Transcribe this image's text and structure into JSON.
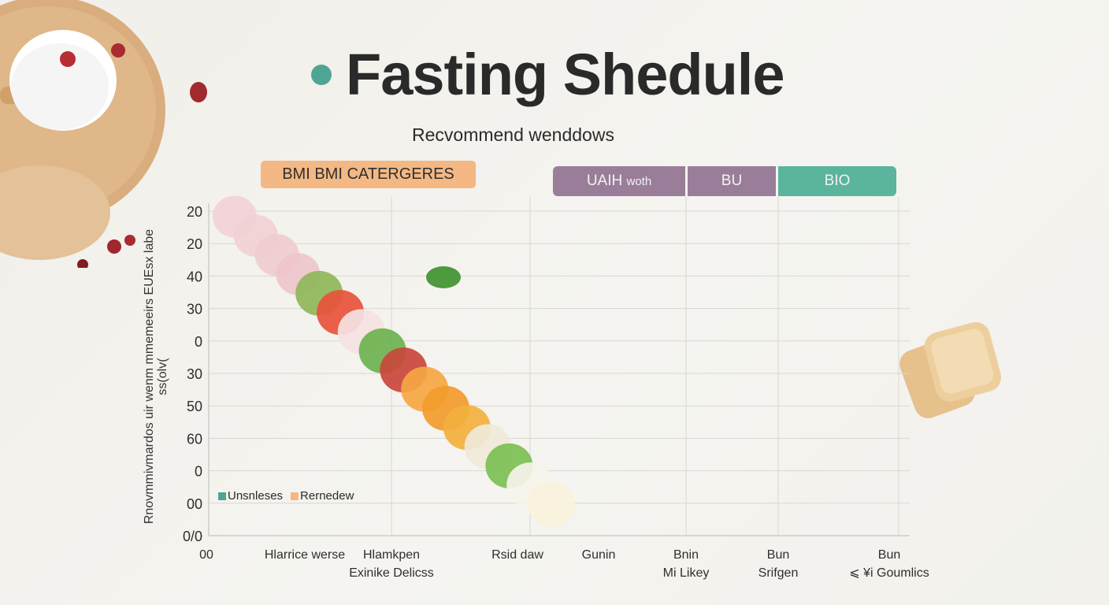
{
  "header": {
    "title": "Fasting Shedule",
    "subtitle": "Recvommend wenddows"
  },
  "category_pill": "BMI BMI CATERGERES",
  "segments": [
    {
      "label": "UAIH",
      "sub": "woth",
      "color": "#9a7e99"
    },
    {
      "label": "BU",
      "sub": "",
      "color": "#9a7e99"
    },
    {
      "label": "BIO",
      "sub": "",
      "color": "#5ab59c"
    }
  ],
  "colors": {
    "accent_teal": "#4fa593",
    "accent_orange": "#f3b884",
    "purple": "#9a7e99",
    "green": "#5ab59c"
  },
  "chart_data": {
    "type": "line",
    "title": "Fasting Shedule",
    "subtitle": "Recvommend wenddows",
    "ylabel": "Rnovmmivmardos uir wenm mmemeeirs EUEsx labe ss(olv(",
    "y_tick_labels": [
      "20",
      "20",
      "40",
      "30",
      "0",
      "30",
      "50",
      "60",
      "0",
      "00",
      "0/0"
    ],
    "x_tick_labels": [
      {
        "line1": "00",
        "line2": ""
      },
      {
        "line1": "Hlarrice werse",
        "line2": ""
      },
      {
        "line1": "Hlamkpen",
        "line2": "Exinike Delicss"
      },
      {
        "line1": "Rsid daw",
        "line2": ""
      },
      {
        "line1": "Gunin",
        "line2": ""
      },
      {
        "line1": "Bnin",
        "line2": "Mi Likey"
      },
      {
        "line1": "Bun",
        "line2": "Srifgen"
      },
      {
        "line1": "Bun",
        "line2": "⩽ ¥i Goumlics"
      }
    ],
    "legend": [
      {
        "name": "Unsnleses",
        "color": "#4fa593"
      },
      {
        "name": "Rernedew",
        "color": "#f3b884"
      }
    ],
    "legend_position": "bottom-left",
    "grid": true,
    "series": [
      {
        "name": "Rernedew",
        "x": [
          0,
          0.5,
          1,
          1.5,
          2,
          2.5,
          3,
          3.5,
          4
        ],
        "y": [
          10,
          9.2,
          8.4,
          7.4,
          6.4,
          5.4,
          4.2,
          2.8,
          1.2
        ]
      }
    ]
  },
  "legend_labels": {
    "a": "Unsnleses",
    "b": "Rernedew"
  }
}
